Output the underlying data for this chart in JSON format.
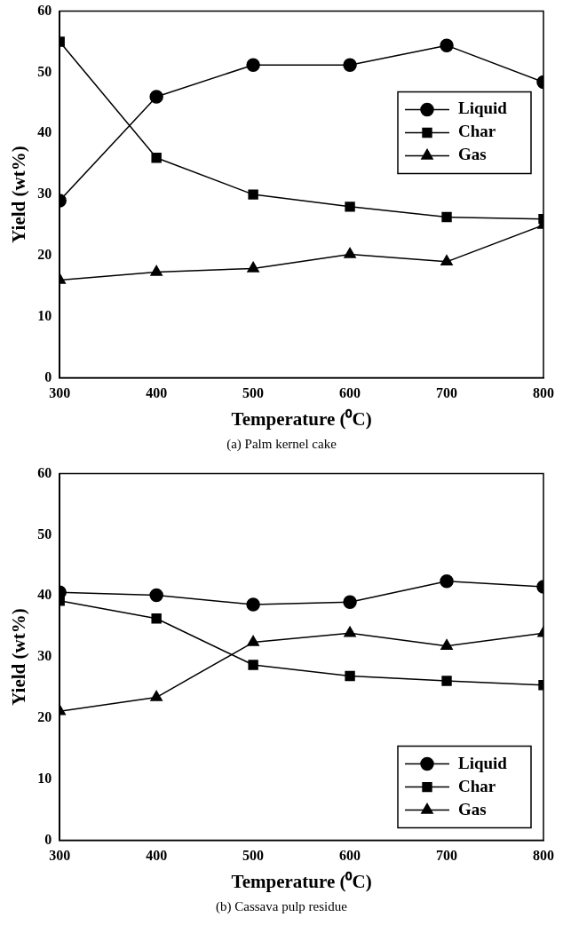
{
  "chart_data": [
    {
      "type": "line",
      "xlabel": "Temperature (⁰C)",
      "ylabel": "Yield (wt%)",
      "annotations": [
        "(a) Palm kernel cake"
      ],
      "x": [
        300,
        400,
        500,
        600,
        700,
        800
      ],
      "xlim": [
        300,
        800
      ],
      "xticks": [
        300,
        400,
        500,
        600,
        700,
        800
      ],
      "ylim": [
        0,
        60
      ],
      "yticks": [
        0,
        10,
        20,
        30,
        40,
        50,
        60
      ],
      "grid": false,
      "legend": "top right",
      "line_style": "solid",
      "series": [
        {
          "name": "Liquid",
          "color": "#000000",
          "marker": "circle",
          "values": [
            29,
            46,
            51.2,
            51.2,
            54.4,
            48.4
          ]
        },
        {
          "name": "Char",
          "color": "#000000",
          "marker": "square",
          "values": [
            55,
            36,
            30,
            28,
            26.3,
            26
          ]
        },
        {
          "name": "Gas",
          "color": "#000000",
          "marker": "triangle",
          "values": [
            16,
            17.3,
            17.9,
            20.2,
            19,
            25
          ]
        }
      ]
    },
    {
      "type": "line",
      "xlabel": "Temperature (⁰C)",
      "ylabel": "Yield (wt%)",
      "annotations": [
        "(b) Cassava pulp residue"
      ],
      "x": [
        300,
        400,
        500,
        600,
        700,
        800
      ],
      "xlim": [
        300,
        800
      ],
      "xticks": [
        300,
        400,
        500,
        600,
        700,
        800
      ],
      "ylim": [
        0,
        60
      ],
      "yticks": [
        0,
        10,
        20,
        30,
        40,
        50,
        60
      ],
      "grid": false,
      "legend": "bottom right",
      "line_style": "solid",
      "series": [
        {
          "name": "Liquid",
          "color": "#000000",
          "marker": "circle",
          "values": [
            40.6,
            40.1,
            38.6,
            39,
            42.4,
            41.5
          ]
        },
        {
          "name": "Char",
          "color": "#000000",
          "marker": "square",
          "values": [
            39.2,
            36.3,
            28.7,
            26.9,
            26.1,
            25.4
          ]
        },
        {
          "name": "Gas",
          "color": "#000000",
          "marker": "triangle",
          "values": [
            21.1,
            23.4,
            32.4,
            33.9,
            31.8,
            33.9
          ]
        }
      ]
    }
  ]
}
